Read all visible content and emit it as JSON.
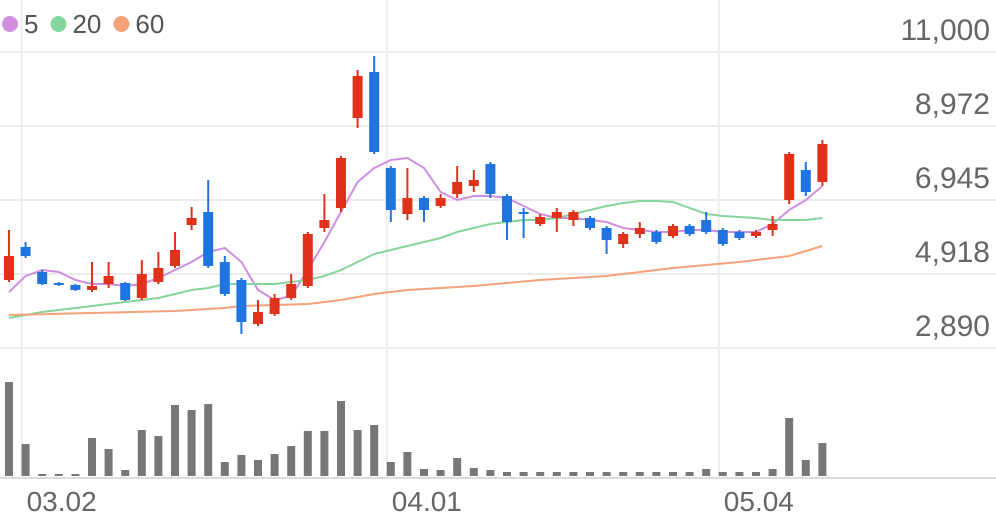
{
  "chart_data": {
    "type": "candlestick",
    "categories": [
      null,
      "03.02",
      null,
      null,
      null,
      null,
      null,
      null,
      null,
      null,
      null,
      null,
      null,
      null,
      null,
      null,
      null,
      null,
      null,
      null,
      null,
      null,
      null,
      "04.01",
      null,
      null,
      null,
      null,
      null,
      null,
      null,
      null,
      null,
      null,
      null,
      null,
      null,
      null,
      null,
      null,
      null,
      null,
      null,
      "05.04",
      null,
      null,
      null,
      null,
      null,
      null
    ],
    "open": [
      4753,
      5657,
      4972,
      4671,
      4616,
      4479,
      4644,
      4671,
      4260,
      4698,
      5137,
      6260,
      6616,
      5247,
      4753,
      3548,
      3822,
      4260,
      4589,
      6178,
      6726,
      9192,
      10452,
      7822,
      6561,
      6999,
      6781,
      7110,
      7329,
      7932,
      7055,
      6616,
      6287,
      6452,
      6397,
      6452,
      6178,
      5739,
      6013,
      6068,
      5959,
      6233,
      6397,
      6123,
      6068,
      5959,
      6123,
      6945,
      7767,
      7438
    ],
    "high": [
      6123,
      5794,
      5027,
      4698,
      4643,
      5247,
      5247,
      4698,
      5301,
      5520,
      6068,
      6753,
      7493,
      5411,
      4808,
      4205,
      4370,
      4917,
      6068,
      7110,
      8151,
      10507,
      10891,
      7877,
      7822,
      7055,
      7110,
      7877,
      7767,
      7986,
      7110,
      6726,
      6561,
      6726,
      6671,
      6507,
      6233,
      6068,
      6342,
      6123,
      6287,
      6287,
      6616,
      6178,
      6123,
      6123,
      6507,
      8260,
      7986,
      8589
    ],
    "low": [
      4698,
      5356,
      4616,
      4589,
      4452,
      4424,
      4534,
      4178,
      4205,
      4643,
      5082,
      6123,
      5082,
      4315,
      3274,
      3493,
      3767,
      4205,
      4534,
      6068,
      6616,
      8918,
      8205,
      6342,
      6397,
      6342,
      6726,
      6999,
      7164,
      6999,
      5849,
      5904,
      6233,
      6068,
      6233,
      6123,
      5466,
      5630,
      5904,
      5739,
      5904,
      5959,
      6013,
      5685,
      5849,
      5904,
      5959,
      6835,
      7055,
      7329
    ],
    "close": [
      5411,
      5411,
      4644,
      4616,
      4479,
      4589,
      4863,
      4205,
      4917,
      5082,
      5575,
      6452,
      5137,
      4370,
      3602,
      3876,
      4260,
      4644,
      6013,
      6397,
      8096,
      10343,
      8260,
      6671,
      6999,
      6671,
      6999,
      7438,
      7493,
      7110,
      6342,
      6561,
      6479,
      6616,
      6616,
      6178,
      5849,
      6013,
      6178,
      5794,
      6233,
      6013,
      6068,
      5739,
      5904,
      6068,
      6287,
      8206,
      7164,
      8479
    ],
    "up_color": "#e0311a",
    "down_color": "#1f74e0",
    "series": [
      {
        "name": "5",
        "color": "#d08ee0",
        "values": [
          4424,
          4863,
          5027,
          4972,
          4753,
          4644,
          4644,
          4589,
          4644,
          4808,
          5027,
          5246,
          5520,
          5630,
          5246,
          4479,
          4205,
          4315,
          5027,
          5794,
          6616,
          7438,
          7822,
          8041,
          8096,
          7822,
          7164,
          6945,
          7055,
          7055,
          7000,
          6781,
          6562,
          6452,
          6452,
          6397,
          6342,
          6178,
          6123,
          6068,
          6068,
          6123,
          6123,
          6068,
          6068,
          6068,
          6288,
          6671,
          6945,
          7329
        ]
      },
      {
        "name": "20",
        "color": "#86d59c",
        "values": [
          3712,
          3794,
          3876,
          3931,
          3986,
          4041,
          4096,
          4150,
          4205,
          4260,
          4370,
          4479,
          4534,
          4644,
          4644,
          4644,
          4644,
          4698,
          4753,
          4863,
          5027,
          5246,
          5466,
          5575,
          5685,
          5794,
          5904,
          6068,
          6178,
          6288,
          6342,
          6397,
          6397,
          6452,
          6562,
          6671,
          6781,
          6863,
          6918,
          6918,
          6890,
          6726,
          6562,
          6507,
          6480,
          6452,
          6397,
          6397,
          6397,
          6452
        ]
      },
      {
        "name": "60",
        "color": "#f4a27a",
        "values": [
          3794,
          3805,
          3816,
          3827,
          3838,
          3849,
          3860,
          3871,
          3882,
          3893,
          3904,
          3931,
          3959,
          3986,
          4041,
          4055,
          4068,
          4082,
          4096,
          4150,
          4205,
          4287,
          4370,
          4424,
          4479,
          4507,
          4534,
          4561,
          4589,
          4630,
          4671,
          4712,
          4753,
          4781,
          4808,
          4835,
          4863,
          4918,
          4972,
          5027,
          5082,
          5123,
          5164,
          5205,
          5246,
          5301,
          5356,
          5411,
          5548,
          5685
        ]
      }
    ],
    "ylim": [
      2890,
      11000
    ],
    "yticks": [
      {
        "value": 2890,
        "label": "2,890"
      },
      {
        "value": 4918,
        "label": "4,918"
      },
      {
        "value": 6945,
        "label": "6,945"
      },
      {
        "value": 8972,
        "label": "8,972"
      },
      {
        "value": 11000,
        "label": "11,000"
      }
    ],
    "grid": true,
    "volume": {
      "color": "#777777",
      "ylim": [
        0,
        960
      ],
      "values": [
        940,
        320,
        20,
        20,
        20,
        380,
        270,
        60,
        460,
        400,
        710,
        660,
        720,
        140,
        210,
        160,
        220,
        300,
        450,
        450,
        750,
        460,
        510,
        140,
        240,
        70,
        60,
        180,
        80,
        60,
        40,
        40,
        40,
        40,
        40,
        40,
        40,
        40,
        40,
        40,
        40,
        40,
        70,
        40,
        40,
        40,
        70,
        580,
        160,
        330
      ]
    }
  }
}
